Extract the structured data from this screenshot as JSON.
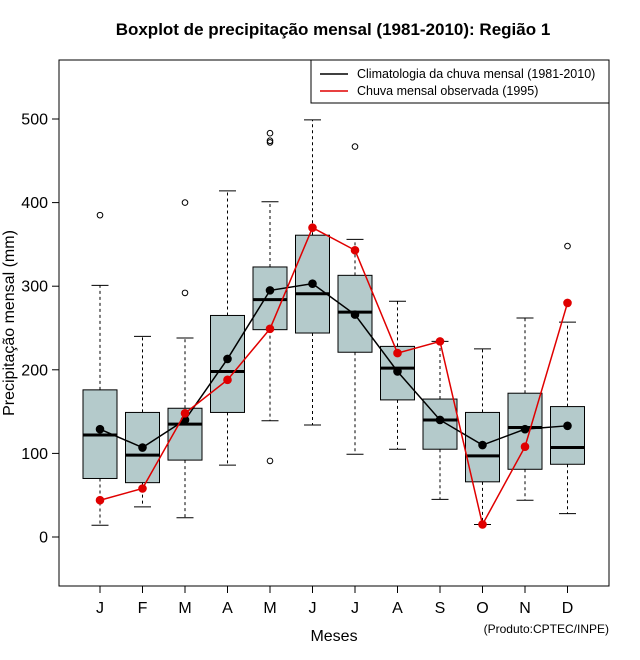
{
  "chart_data": {
    "type": "boxplot",
    "title": "Boxplot de precipitação mensal (1981-2010): Região 1",
    "xlabel": "Meses",
    "ylabel": "Precipitação mensal (mm)",
    "ylim": [
      -60,
      560
    ],
    "yticks": [
      0,
      100,
      200,
      300,
      400,
      500
    ],
    "categories": [
      "J",
      "F",
      "M",
      "A",
      "M",
      "J",
      "J",
      "A",
      "S",
      "O",
      "N",
      "D"
    ],
    "boxes": [
      {
        "whisker_low": 14,
        "q1": 70,
        "median": 122,
        "q3": 176,
        "whisker_high": 301,
        "outliers": [
          385
        ]
      },
      {
        "whisker_low": 36,
        "q1": 65,
        "median": 98,
        "q3": 149,
        "whisker_high": 240,
        "outliers": []
      },
      {
        "whisker_low": 23,
        "q1": 92,
        "median": 135,
        "q3": 154,
        "whisker_high": 238,
        "outliers": [
          292,
          400
        ]
      },
      {
        "whisker_low": 86,
        "q1": 149,
        "median": 198,
        "q3": 265,
        "whisker_high": 414,
        "outliers": []
      },
      {
        "whisker_low": 139,
        "q1": 248,
        "median": 284,
        "q3": 323,
        "whisker_high": 401,
        "outliers": [
          91,
          472,
          474,
          483
        ]
      },
      {
        "whisker_low": 134,
        "q1": 244,
        "median": 291,
        "q3": 361,
        "whisker_high": 499,
        "outliers": []
      },
      {
        "whisker_low": 99,
        "q1": 221,
        "median": 269,
        "q3": 313,
        "whisker_high": 356,
        "outliers": [
          467
        ]
      },
      {
        "whisker_low": 105,
        "q1": 164,
        "median": 202,
        "q3": 228,
        "whisker_high": 282,
        "outliers": []
      },
      {
        "whisker_low": 45,
        "q1": 105,
        "median": 140,
        "q3": 165,
        "whisker_high": 234,
        "outliers": []
      },
      {
        "whisker_low": 15,
        "q1": 66,
        "median": 97,
        "q3": 149,
        "whisker_high": 225,
        "outliers": []
      },
      {
        "whisker_low": 44,
        "q1": 81,
        "median": 131,
        "q3": 172,
        "whisker_high": 262,
        "outliers": []
      },
      {
        "whisker_low": 28,
        "q1": 87,
        "median": 107,
        "q3": 156,
        "whisker_high": 257,
        "outliers": [
          348
        ]
      }
    ],
    "series": [
      {
        "name": "Climatologia da chuva mensal (1981-2010)",
        "color": "#000000",
        "values": [
          129,
          107,
          140,
          213,
          295,
          303,
          266,
          198,
          140,
          110,
          129,
          133
        ]
      },
      {
        "name": "Chuva mensal observada (1995)",
        "color": "#e00000",
        "values": [
          44,
          58,
          148,
          188,
          249,
          370,
          343,
          220,
          234,
          15,
          108,
          280
        ]
      }
    ],
    "box_fill": "#b4cacb",
    "legend_position": "top-right"
  },
  "credit": "(Produto:CPTEC/INPE)"
}
